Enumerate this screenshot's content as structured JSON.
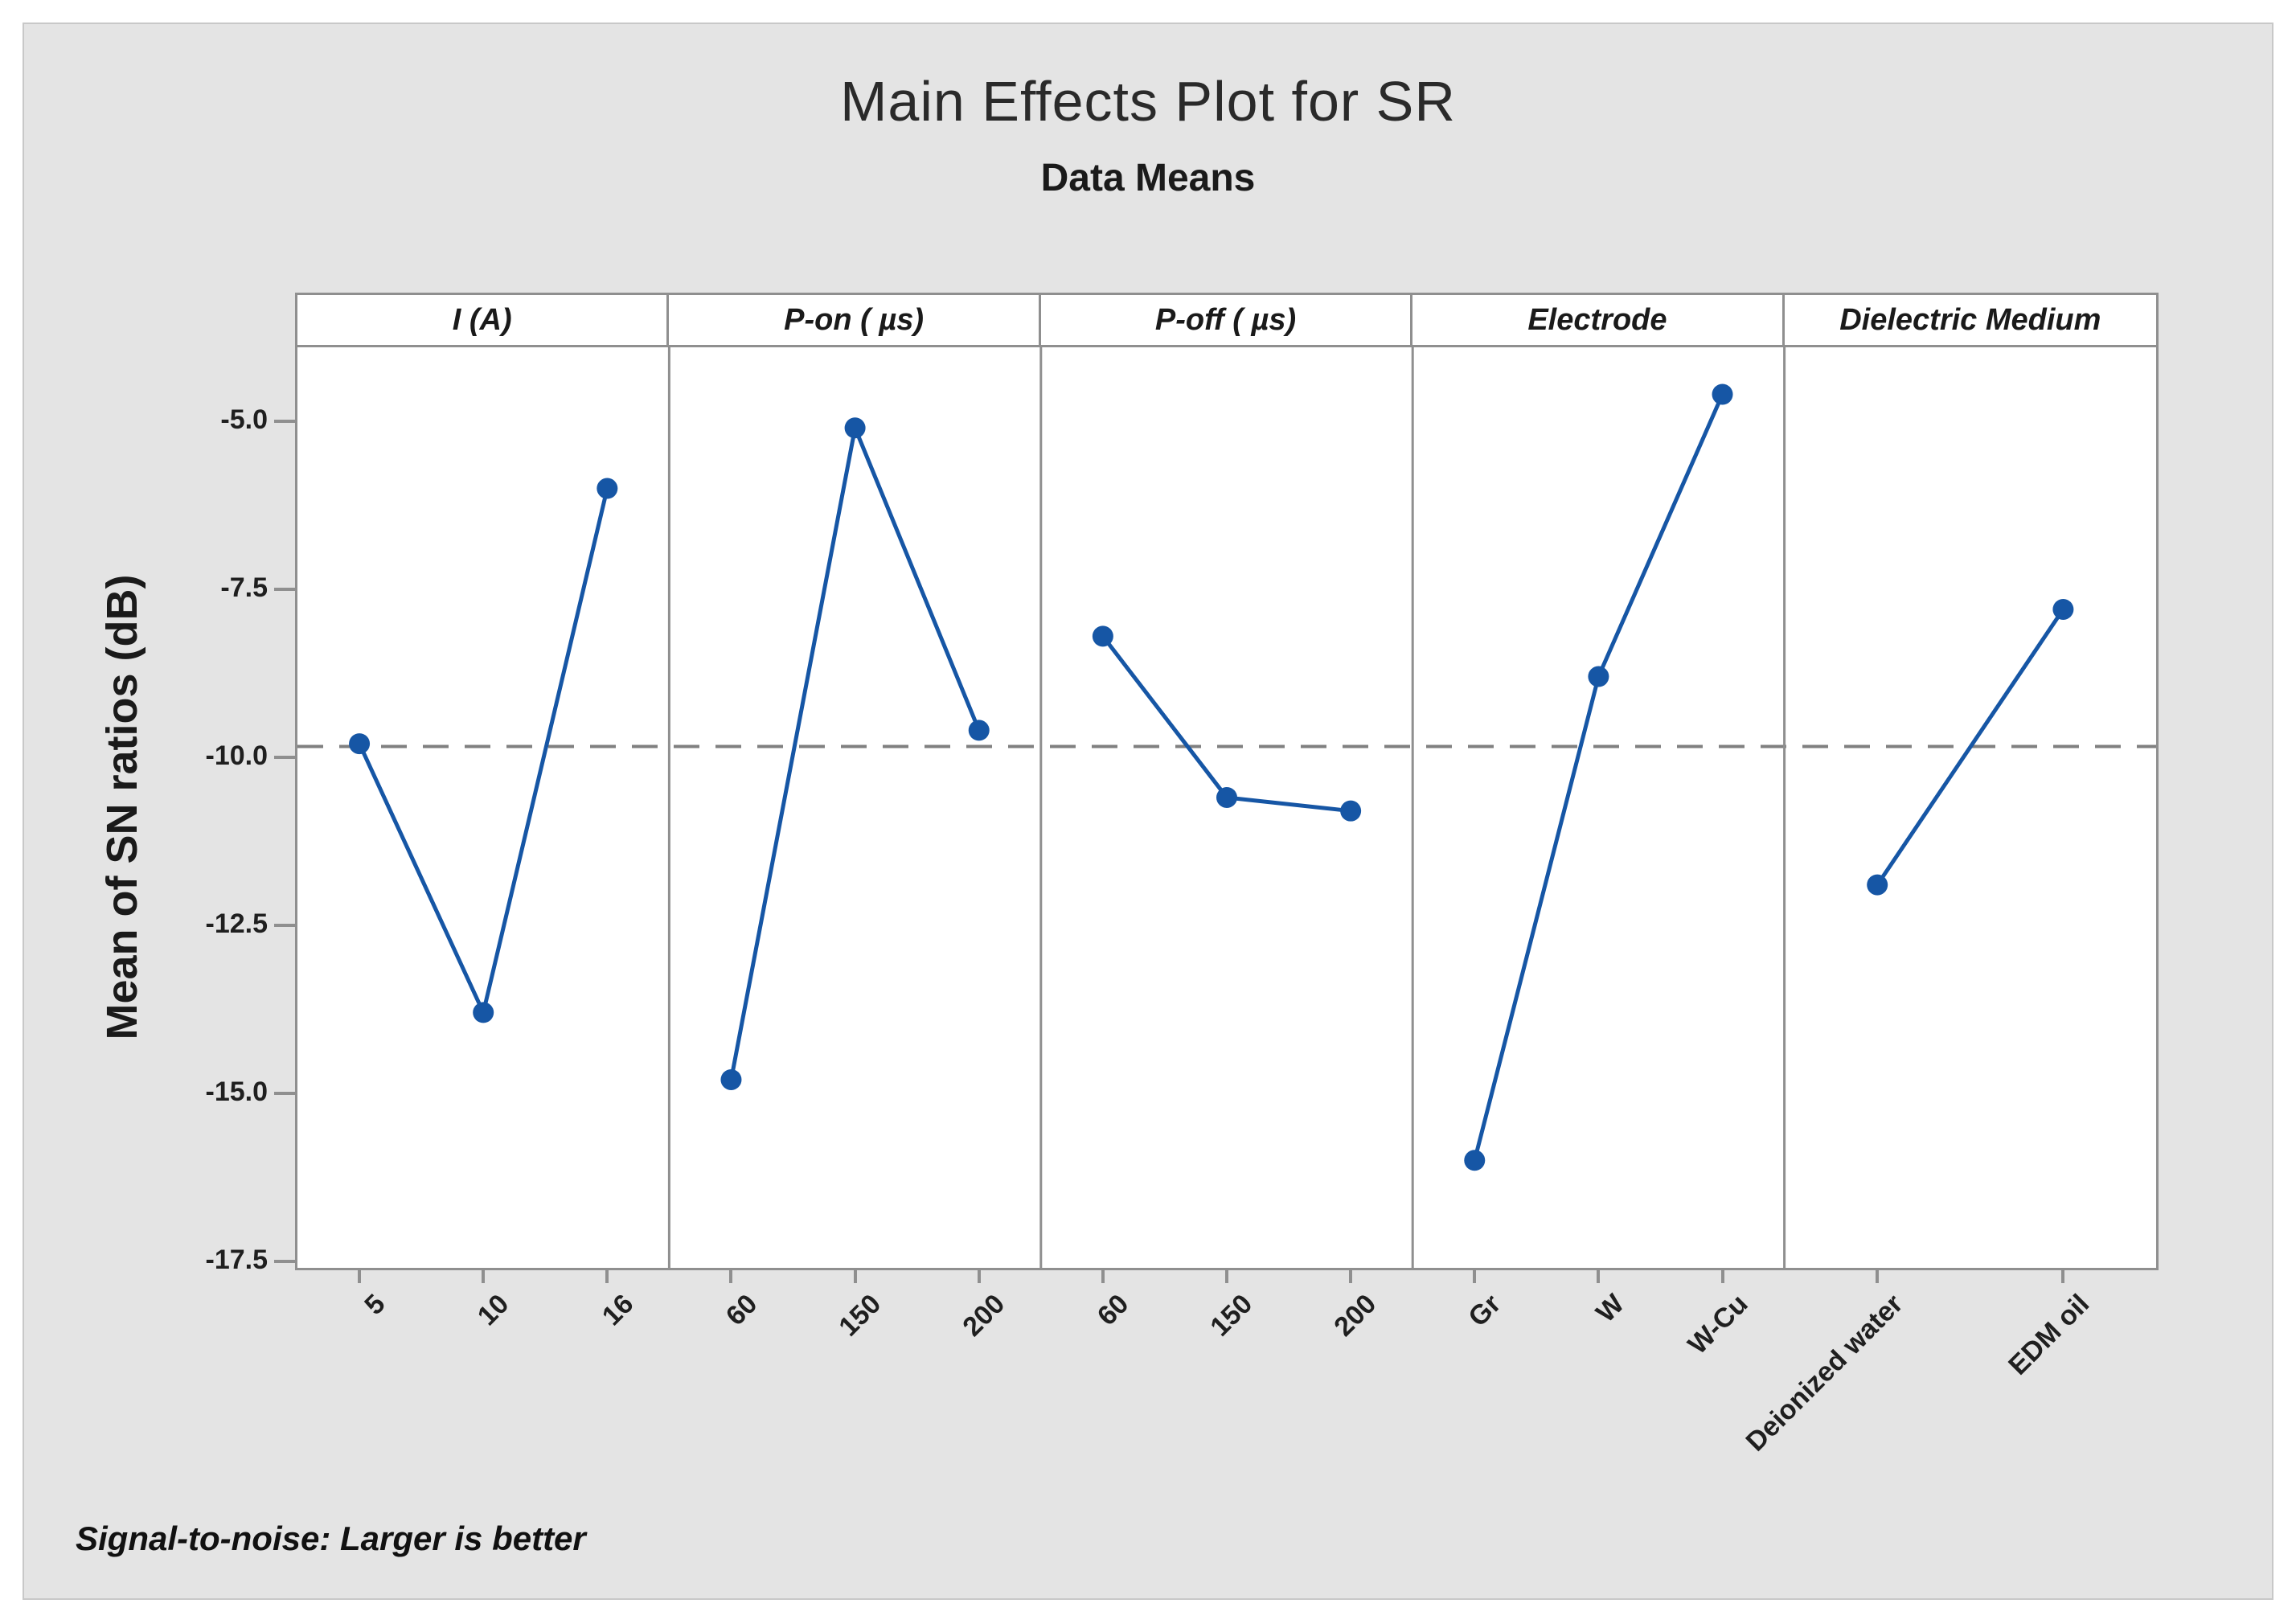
{
  "window": {
    "background": "#ffffff",
    "panel_background": "#e4e4e4",
    "panel_border": "#c8c8c8"
  },
  "chart_data": {
    "type": "line",
    "title": "Main Effects Plot for SR",
    "subtitle": "Data Means",
    "ylabel": "Mean of SN ratios (dB)",
    "footnote": "Signal-to-noise: Larger is better",
    "grid": false,
    "legend_position": "none",
    "ylim": [
      -17.6,
      -3.9
    ],
    "yticks": [
      -5.0,
      -7.5,
      -10.0,
      -12.5,
      -15.0,
      -17.5
    ],
    "ytick_labels": [
      "-5.0",
      "-7.5",
      "-10.0",
      "-12.5",
      "-15.0",
      "-17.5"
    ],
    "reference_line_mean": -9.84,
    "panels": [
      {
        "factor": "I (A)",
        "categories": [
          "5",
          "10",
          "16"
        ],
        "values": [
          -9.8,
          -13.8,
          -6.0
        ]
      },
      {
        "factor": "P-on ( µs)",
        "categories": [
          "60",
          "150",
          "200"
        ],
        "values": [
          -14.8,
          -5.1,
          -9.6
        ]
      },
      {
        "factor": "P-off ( µs)",
        "categories": [
          "60",
          "150",
          "200"
        ],
        "values": [
          -8.2,
          -10.6,
          -10.8
        ]
      },
      {
        "factor": "Electrode",
        "categories": [
          "Gr",
          "W",
          "W-Cu"
        ],
        "values": [
          -16.0,
          -8.8,
          -4.6
        ]
      },
      {
        "factor": "Dielectric Medium",
        "categories": [
          "Deionized water",
          "EDM oil"
        ],
        "values": [
          -11.9,
          -7.8
        ]
      }
    ],
    "colors": {
      "series": "#1656a5",
      "reference_line": "#808080",
      "frame": "#8f8f8f",
      "text": "#1a1a1a"
    }
  }
}
